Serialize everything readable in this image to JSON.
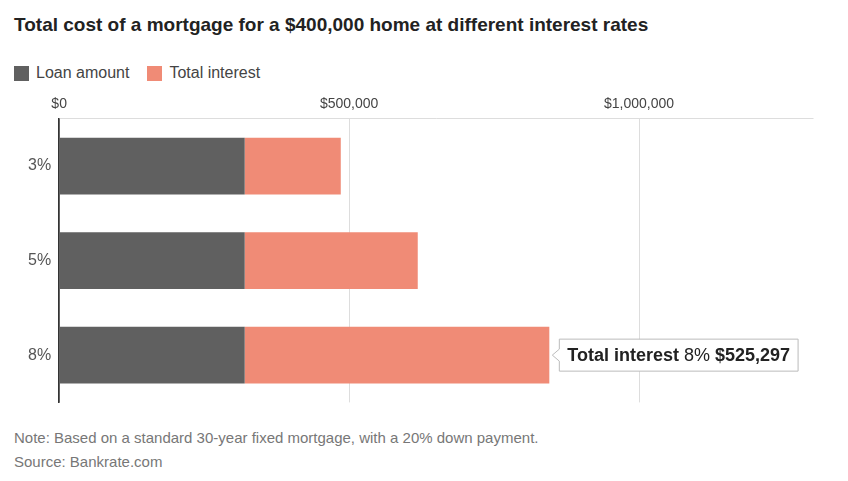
{
  "chart_data": {
    "type": "bar",
    "orientation": "horizontal",
    "stacked": true,
    "grid": true,
    "title": "Total cost of a mortgage for a $400,000 home at different interest rates",
    "categories": [
      "3%",
      "5%",
      "8%"
    ],
    "series": [
      {
        "name": "Loan amount",
        "color": "#606060",
        "values": [
          320000,
          320000,
          320000
        ]
      },
      {
        "name": "Total interest",
        "color": "#f08b76",
        "values": [
          165687,
          298419,
          525297
        ]
      }
    ],
    "xlim": [
      0,
      1300000
    ],
    "xticks": [
      {
        "value": 0,
        "label": "$0"
      },
      {
        "value": 500000,
        "label": "$500,000"
      },
      {
        "value": 1000000,
        "label": "$1,000,000"
      }
    ],
    "annotation": {
      "label": "Total interest",
      "category": "8%",
      "series": "Total interest",
      "value_label": "$525,297"
    },
    "notes": [
      "Note: Based on a standard 30-year fixed mortgage, with a 20% down payment.",
      "Source: Bankrate.com"
    ]
  }
}
